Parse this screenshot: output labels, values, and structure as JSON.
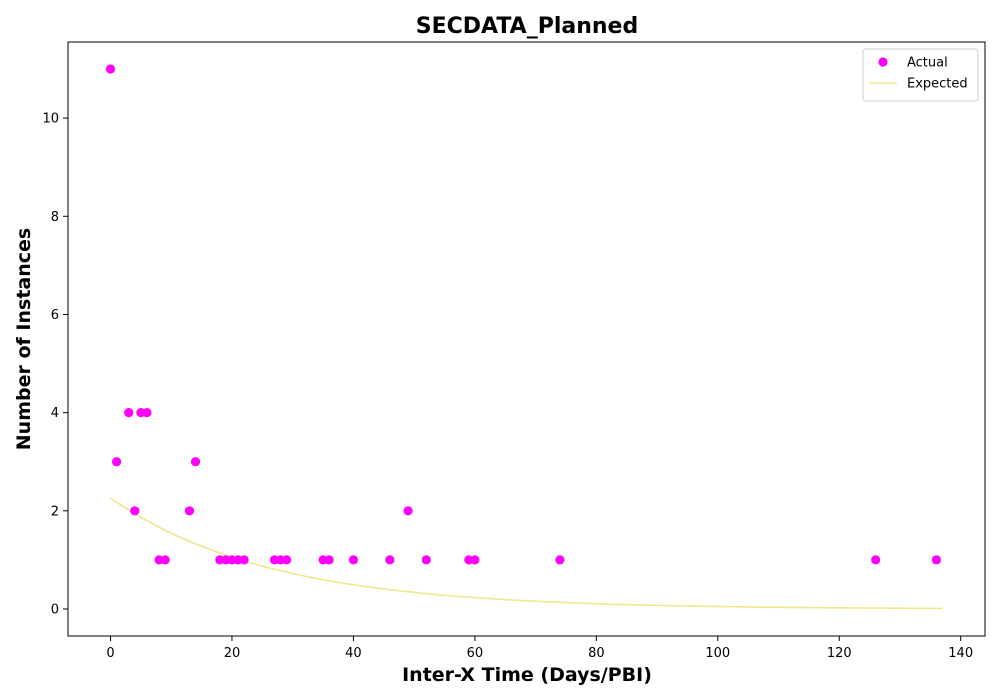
{
  "chart_data": {
    "type": "scatter",
    "title": "SECDATA_Planned",
    "xlabel": "Inter-X Time (Days/PBI)",
    "ylabel": "Number of Instances",
    "xlim": [
      -7,
      144
    ],
    "ylim": [
      -0.55,
      11.55
    ],
    "xticks": [
      0,
      20,
      40,
      60,
      80,
      100,
      120,
      140
    ],
    "yticks": [
      0,
      2,
      4,
      6,
      8,
      10
    ],
    "grid": false,
    "legend_position": "top-right",
    "series": [
      {
        "name": "Actual",
        "kind": "scatter",
        "color": "#ff00ff",
        "points": [
          [
            0,
            11
          ],
          [
            1,
            3
          ],
          [
            3,
            4
          ],
          [
            4,
            2
          ],
          [
            5,
            4
          ],
          [
            6,
            4
          ],
          [
            8,
            1
          ],
          [
            9,
            1
          ],
          [
            13,
            2
          ],
          [
            14,
            3
          ],
          [
            18,
            1
          ],
          [
            19,
            1
          ],
          [
            20,
            1
          ],
          [
            21,
            1
          ],
          [
            22,
            1
          ],
          [
            27,
            1
          ],
          [
            28,
            1
          ],
          [
            29,
            1
          ],
          [
            35,
            1
          ],
          [
            36,
            1
          ],
          [
            40,
            1
          ],
          [
            46,
            1
          ],
          [
            49,
            2
          ],
          [
            52,
            1
          ],
          [
            59,
            1
          ],
          [
            60,
            1
          ],
          [
            74,
            1
          ],
          [
            126,
            1
          ],
          [
            136,
            1
          ]
        ]
      },
      {
        "name": "Expected",
        "kind": "line",
        "color": "#f0e68c",
        "curve": {
          "form": "exponential",
          "a": 2.26,
          "b": 0.038,
          "x_start": 0,
          "x_end": 137
        }
      }
    ]
  }
}
